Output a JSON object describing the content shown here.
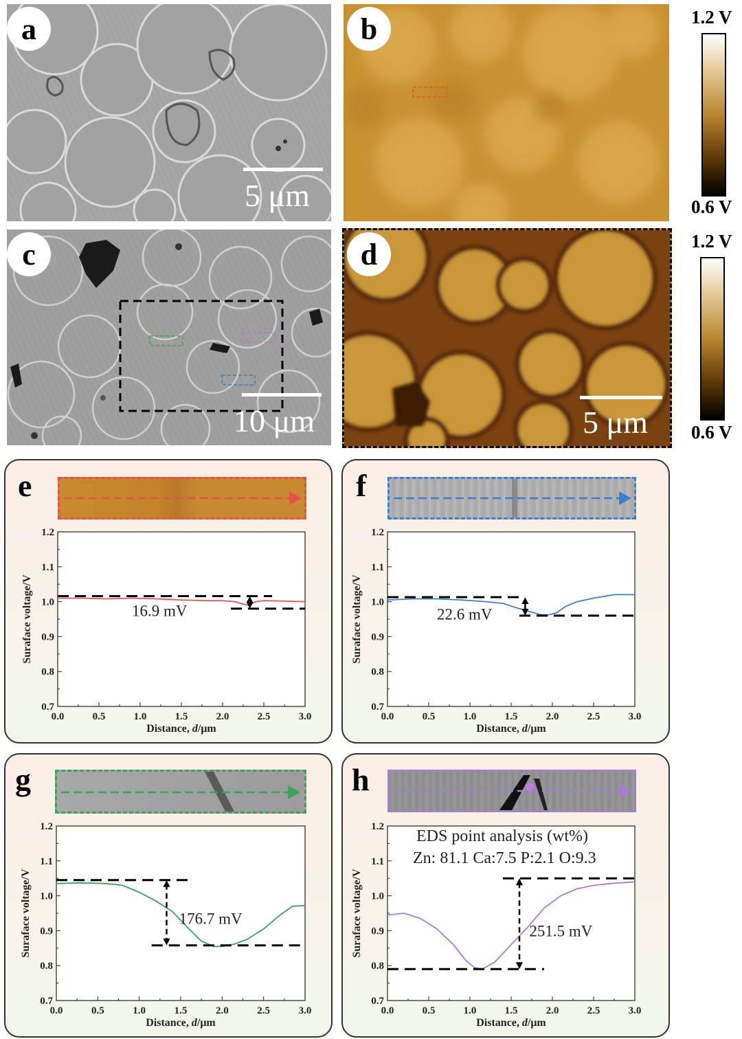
{
  "panels": {
    "a": {
      "letter": "a",
      "scalebar": "5 μm"
    },
    "b": {
      "letter": "b"
    },
    "c": {
      "letter": "c",
      "scalebar": "10 μm"
    },
    "d": {
      "letter": "d",
      "scalebar": "5 μm"
    }
  },
  "colorbars": [
    {
      "max_label": "1.2 V",
      "min_label": "0.6 V"
    },
    {
      "max_label": "1.2 V",
      "min_label": "0.6 V"
    }
  ],
  "colors": {
    "red": "#e8504b",
    "blue": "#3a7fd0",
    "green": "#3aa55a",
    "purple": "#a77bd6"
  },
  "chart_data": [
    {
      "id": "e",
      "type": "line",
      "letter": "e",
      "xlabel": "Distance, ",
      "xlabel_italic": "d",
      "xlabel_unit": "/μm",
      "ylabel": "Suraface voltage/V",
      "xlim": [
        0.0,
        3.0
      ],
      "ylim": [
        0.7,
        1.2
      ],
      "xticks": [
        "0.0",
        "0.5",
        "1.0",
        "1.5",
        "2.0",
        "2.5",
        "3.0"
      ],
      "yticks": [
        "0.7",
        "0.8",
        "0.9",
        "1.0",
        "1.1",
        "1.2"
      ],
      "color": "#e8504b",
      "annotation": "16.9 mV",
      "x": [
        0.0,
        0.3,
        0.6,
        0.9,
        1.2,
        1.5,
        1.8,
        2.0,
        2.15,
        2.25,
        2.32,
        2.4,
        2.5,
        2.7,
        3.0
      ],
      "y": [
        1.01,
        1.01,
        1.008,
        1.01,
        1.008,
        1.005,
        1.003,
        1.003,
        1.0,
        0.993,
        0.99,
        1.0,
        1.003,
        1.002,
        1.0
      ]
    },
    {
      "id": "f",
      "type": "line",
      "letter": "f",
      "xlabel": "Distance, ",
      "xlabel_italic": "d",
      "xlabel_unit": "/μm",
      "ylabel": "Suraface voltage/V",
      "xlim": [
        0.0,
        3.0
      ],
      "ylim": [
        0.7,
        1.2
      ],
      "xticks": [
        "0.0",
        "0.5",
        "1.0",
        "1.5",
        "2.0",
        "2.5",
        "3.0"
      ],
      "yticks": [
        "0.7",
        "0.8",
        "0.9",
        "1.0",
        "1.1",
        "1.2"
      ],
      "color": "#3a7fd0",
      "annotation": "22.6 mV",
      "x": [
        0.0,
        0.3,
        0.6,
        0.9,
        1.2,
        1.4,
        1.6,
        1.75,
        1.85,
        1.95,
        2.05,
        2.15,
        2.3,
        2.5,
        2.75,
        3.0
      ],
      "y": [
        1.005,
        1.008,
        1.008,
        1.005,
        1.0,
        0.995,
        0.98,
        0.97,
        0.963,
        0.962,
        0.968,
        0.985,
        1.0,
        1.01,
        1.02,
        1.02
      ]
    },
    {
      "id": "g",
      "type": "line",
      "letter": "g",
      "xlabel": "Distance, ",
      "xlabel_italic": "d",
      "xlabel_unit": "/μm",
      "ylabel": "Suraface voltage/V",
      "xlim": [
        0.0,
        3.0
      ],
      "ylim": [
        0.7,
        1.2
      ],
      "xticks": [
        "0.0",
        "0.5",
        "1.0",
        "1.5",
        "2.0",
        "2.5",
        "3.0"
      ],
      "yticks": [
        "0.7",
        "0.8",
        "0.9",
        "1.0",
        "1.1",
        "1.2"
      ],
      "color": "#3aa55a",
      "annotation": "176.7 mV",
      "x": [
        0.0,
        0.3,
        0.6,
        0.8,
        1.0,
        1.2,
        1.4,
        1.6,
        1.75,
        1.9,
        2.0,
        2.15,
        2.3,
        2.5,
        2.7,
        2.85,
        3.0
      ],
      "y": [
        1.035,
        1.037,
        1.035,
        1.03,
        1.01,
        0.985,
        0.955,
        0.905,
        0.87,
        0.855,
        0.855,
        0.862,
        0.875,
        0.905,
        0.945,
        0.97,
        0.972
      ]
    },
    {
      "id": "h",
      "type": "line",
      "letter": "h",
      "xlabel": "Distance, ",
      "xlabel_italic": "d",
      "xlabel_unit": "/μm",
      "ylabel": "Suraface voltage/V",
      "xlim": [
        0.0,
        3.0
      ],
      "ylim": [
        0.7,
        1.2
      ],
      "xticks": [
        "0.0",
        "0.5",
        "1.0",
        "1.5",
        "2.0",
        "2.5",
        "3.0"
      ],
      "yticks": [
        "0.7",
        "0.8",
        "0.9",
        "1.0",
        "1.1",
        "1.2"
      ],
      "color": "#a77bd6",
      "annotation": "251.5 mV",
      "eds_title": "EDS point analysis  (wt%)",
      "eds_values": "Zn: 81.1 Ca:7.5 P:2.1 O:9.3",
      "x": [
        0.0,
        0.2,
        0.4,
        0.6,
        0.8,
        0.95,
        1.05,
        1.15,
        1.3,
        1.5,
        1.7,
        1.9,
        2.1,
        2.3,
        2.5,
        2.7,
        3.0
      ],
      "y": [
        0.945,
        0.95,
        0.935,
        0.905,
        0.86,
        0.815,
        0.795,
        0.79,
        0.81,
        0.86,
        0.91,
        0.965,
        1.0,
        1.02,
        1.03,
        1.035,
        1.04
      ]
    }
  ]
}
